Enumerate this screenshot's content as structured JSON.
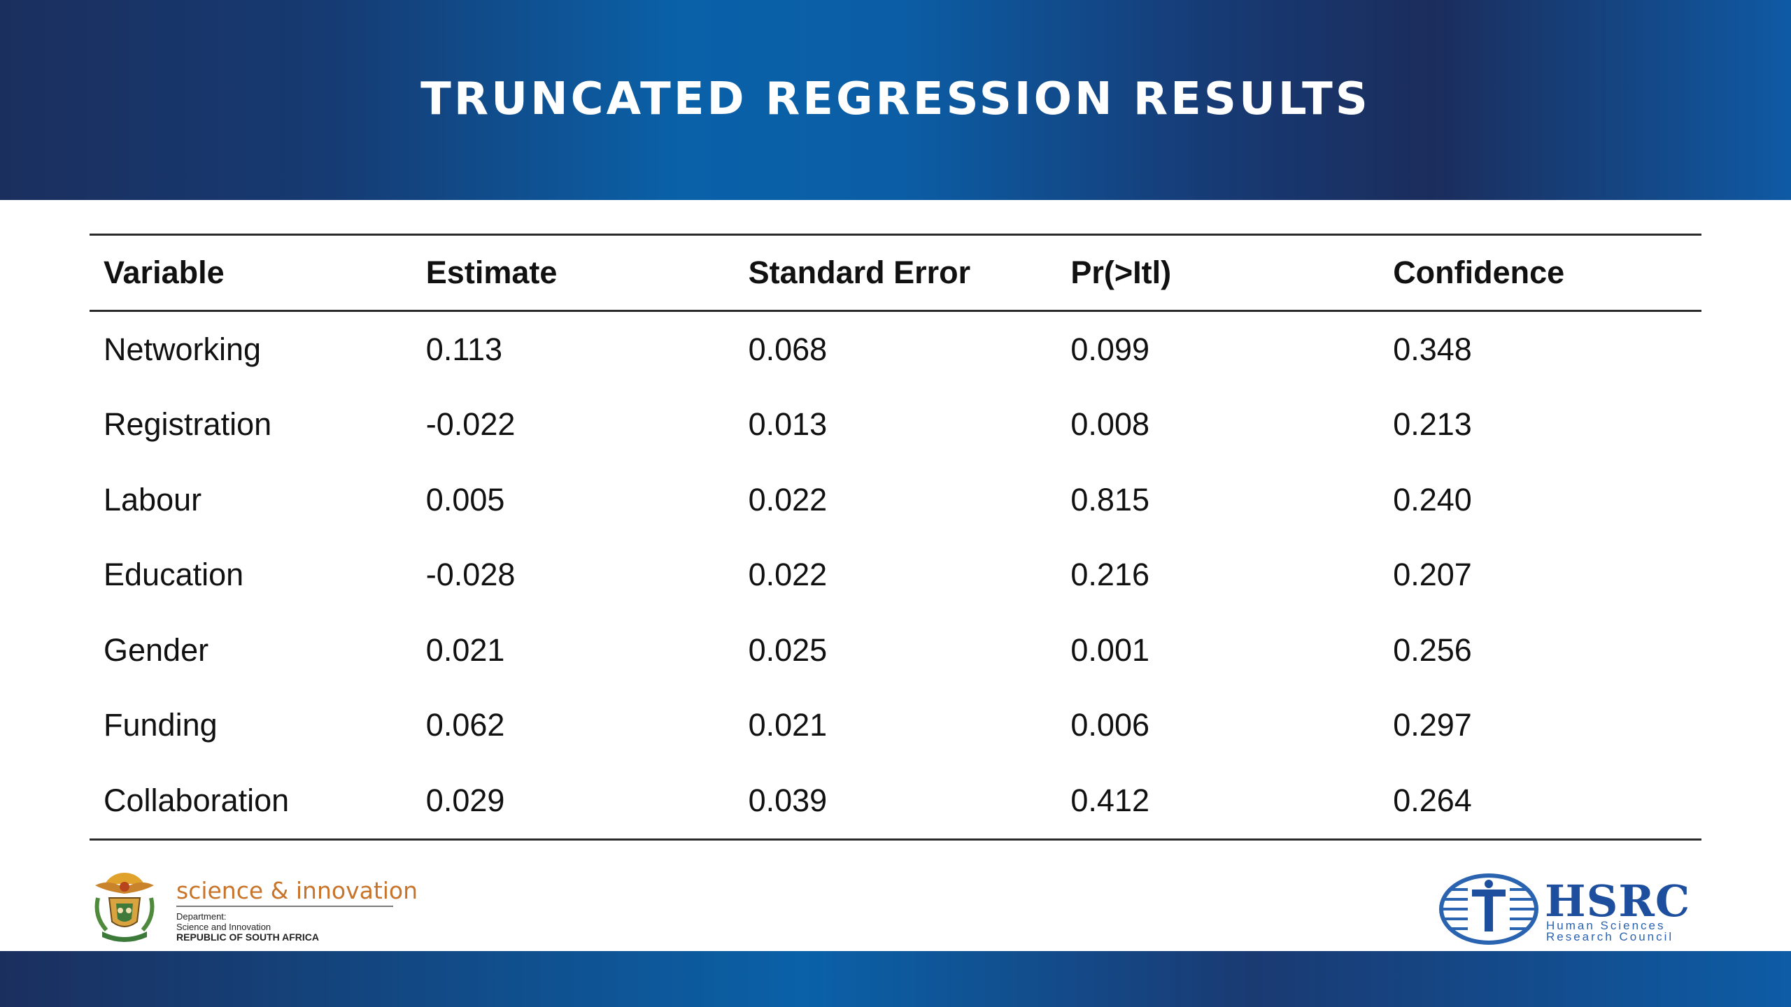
{
  "slide": {
    "title": "TRUNCATED REGRESSION RESULTS"
  },
  "table": {
    "headers": [
      "Variable",
      "Estimate",
      "Standard Error",
      "Pr(>Itl)",
      "Confidence"
    ],
    "rows": [
      [
        "Networking",
        "0.113",
        "0.068",
        "0.099",
        "0.348"
      ],
      [
        "Registration",
        "-0.022",
        "0.013",
        "0.008",
        "0.213"
      ],
      [
        "Labour",
        "0.005",
        "0.022",
        "0.815",
        "0.240"
      ],
      [
        "Education",
        "-0.028",
        "0.022",
        "0.216",
        "0.207"
      ],
      [
        "Gender",
        "0.021",
        "0.025",
        "0.001",
        "0.256"
      ],
      [
        "Funding",
        "0.062",
        "0.021",
        "0.006",
        "0.297"
      ],
      [
        "Collaboration",
        "0.029",
        "0.039",
        "0.412",
        "0.264"
      ]
    ]
  },
  "logos": {
    "dsi": {
      "brand": "science & innovation",
      "line1": "Department:",
      "line2": "Science and Innovation",
      "line3": "REPUBLIC OF SOUTH AFRICA",
      "emblem_icon": "coat-of-arms-icon"
    },
    "hsrc": {
      "name": "HSRC",
      "sub1": "Human Sciences",
      "sub2": "Research Council",
      "mark_icon": "hsrc-globe-icon"
    }
  },
  "colors": {
    "header_dark": "#1b2f5e",
    "header_blue": "#0a61a8",
    "dsi_orange": "#c8742a",
    "hsrc_blue": "#1e4f9e"
  }
}
